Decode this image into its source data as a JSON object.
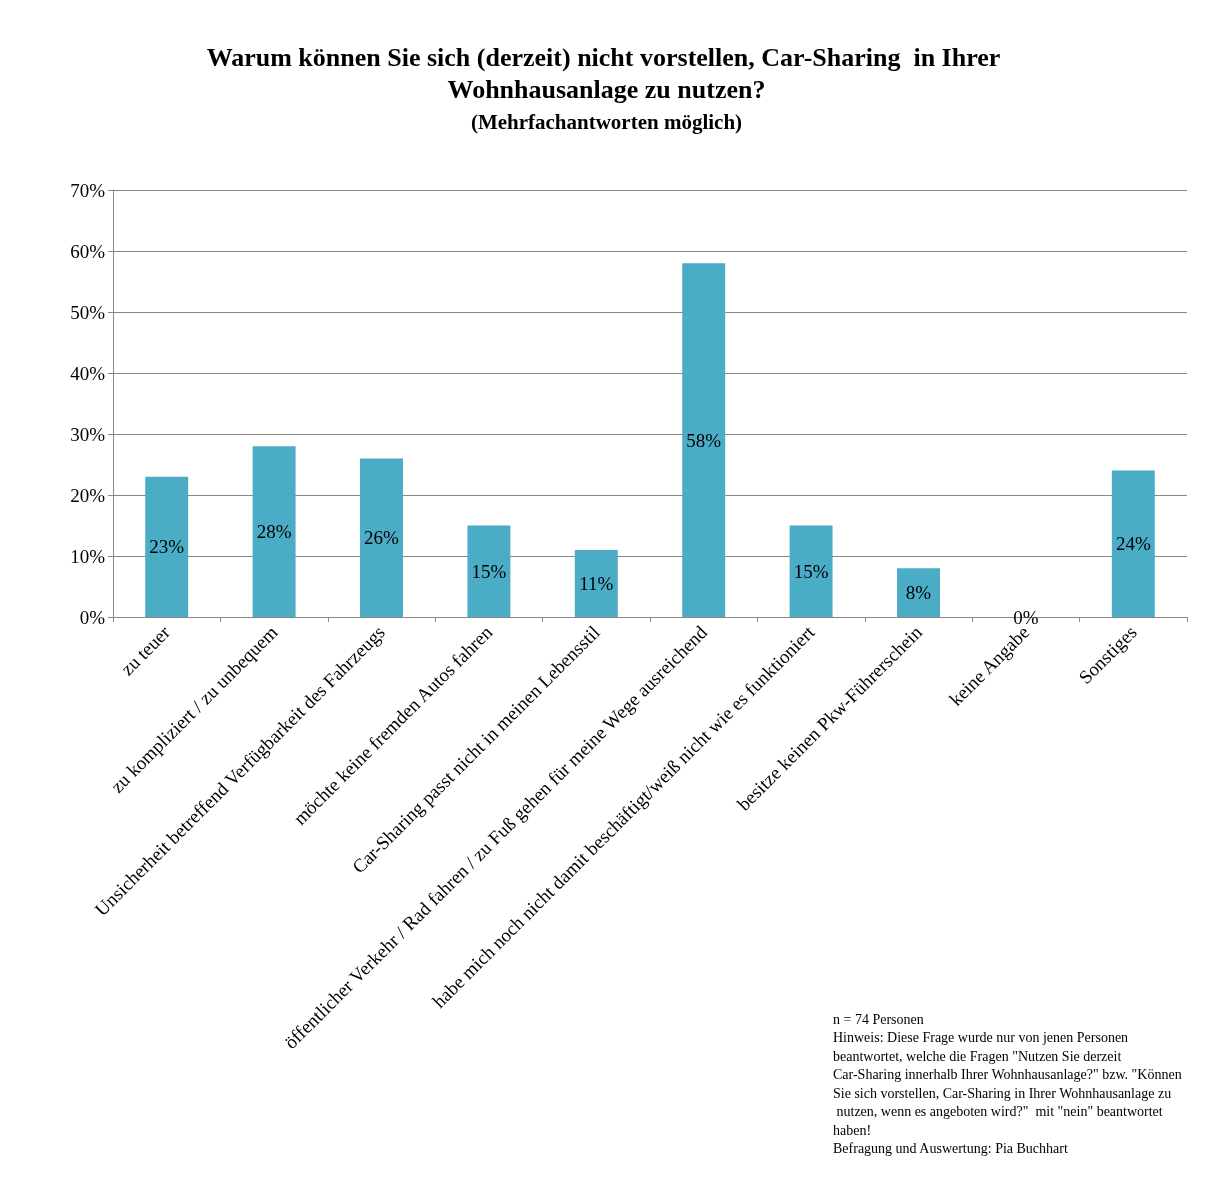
{
  "chart_data": {
    "type": "bar",
    "title": "Warum können Sie sich (derzeit) nicht vorstellen, Car-Sharing  in Ihrer Wohnhausanlage zu nutzen?",
    "subtitle": "(Mehrfachantworten möglich)",
    "categories": [
      "zu teuer",
      "zu kompliziert / zu unbequem",
      "Unsicherheit betreffend Verfügbarkeit des Fahrzeugs",
      "möchte keine fremden Autos fahren",
      "Car-Sharing passt nicht in meinen Lebensstil",
      "öffentlicher Verkehr / Rad fahren / zu Fuß gehen für meine Wege ausreichend",
      "habe mich noch nicht damit beschäftigt/weiß nicht wie es funktioniert",
      "besitze keinen Pkw-Führerschein",
      "keine Angabe",
      "Sonstiges"
    ],
    "values": [
      23,
      28,
      26,
      15,
      11,
      58,
      15,
      8,
      0,
      24
    ],
    "color": "#4bacc6",
    "ylim": [
      0,
      70
    ],
    "yticks": [
      {
        "value": 0,
        "label": "0%"
      },
      {
        "value": 10,
        "label": "10%"
      },
      {
        "value": 20,
        "label": "20%"
      },
      {
        "value": 30,
        "label": "30%"
      },
      {
        "value": 40,
        "label": "40%"
      },
      {
        "value": 50,
        "label": "50%"
      },
      {
        "value": 60,
        "label": "60%"
      },
      {
        "value": 70,
        "label": "70%"
      }
    ],
    "grid": "y",
    "value_labels": [
      "23%",
      "28%",
      "26%",
      "15%",
      "11%",
      "58%",
      "15%",
      "8%",
      "0%",
      "24%"
    ],
    "annotations": [
      "n = 74 Personen",
      "Hinweis: Diese Frage wurde nur von jenen Personen beantwortet, welche die Fragen \"Nutzen Sie derzeit Car-Sharing innerhalb Ihrer Wohnhausanlage?\" bzw. \"Können Sie sich vorstellen, Car-Sharing in Ihrer Wohnhausanlage zu nutzen, wenn es angeboten wird?\"  mit \"nein\" beantwortet haben!",
      "Befragung und Auswertung: Pia Buchhart"
    ]
  }
}
